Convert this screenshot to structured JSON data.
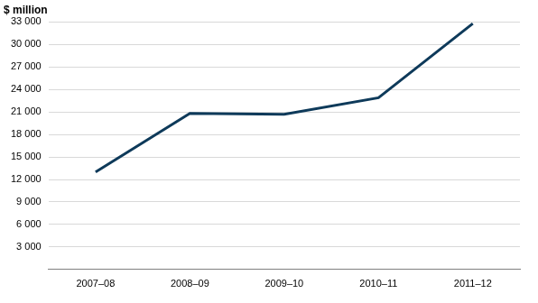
{
  "chart_data": {
    "type": "line",
    "y_label": "$ million",
    "categories": [
      "2007–08",
      "2008–09",
      "2009–10",
      "2010–11",
      "2011–12"
    ],
    "values": [
      13000,
      20800,
      20700,
      22900,
      32800
    ],
    "color": "#0e3a5a",
    "ylim": [
      0,
      33000
    ],
    "yticks": [
      {
        "value": 3000,
        "label": "3 000"
      },
      {
        "value": 6000,
        "label": "6 000"
      },
      {
        "value": 9000,
        "label": "9 000"
      },
      {
        "value": 12000,
        "label": "12 000"
      },
      {
        "value": 15000,
        "label": "15 000"
      },
      {
        "value": 18000,
        "label": "18 000"
      },
      {
        "value": 21000,
        "label": "21 000"
      },
      {
        "value": 24000,
        "label": "24 000"
      },
      {
        "value": 27000,
        "label": "27 000"
      },
      {
        "value": 30000,
        "label": "30 000"
      },
      {
        "value": 33000,
        "label": "33 000"
      }
    ],
    "grid": true
  }
}
